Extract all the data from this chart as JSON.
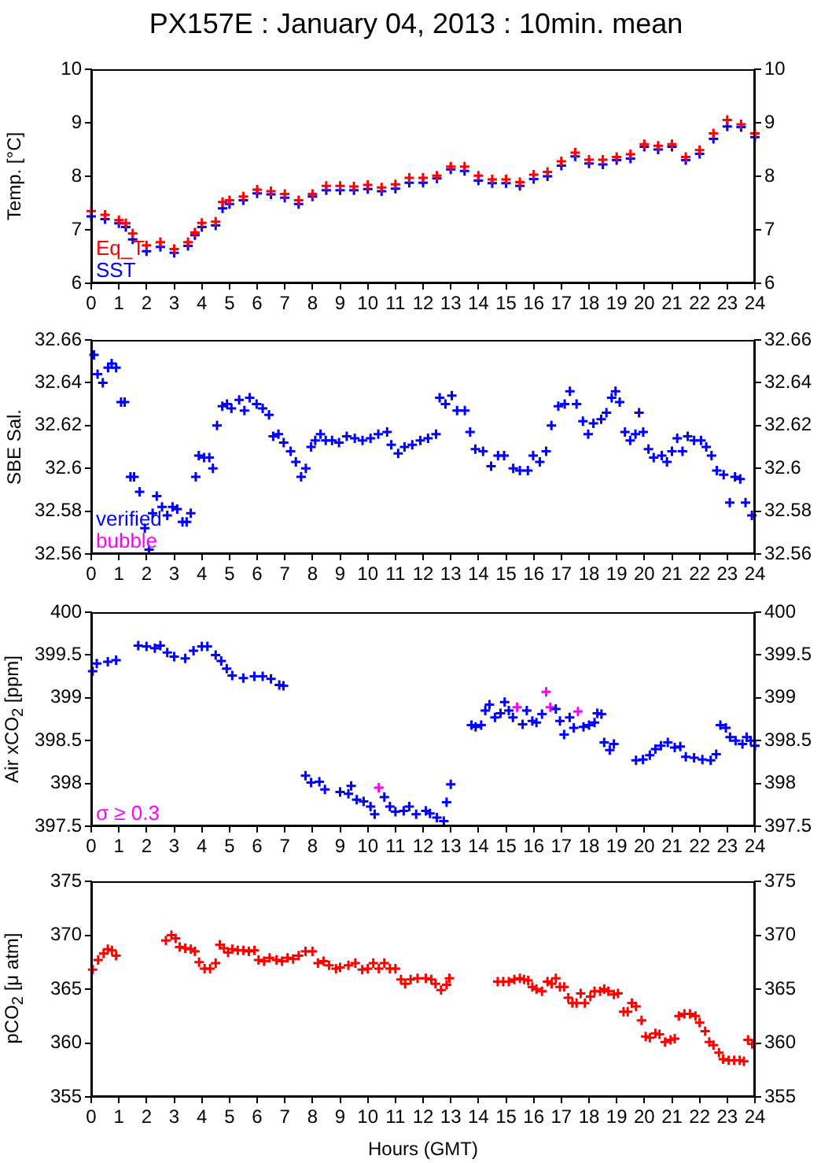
{
  "chart_data": [
    {
      "type": "scatter",
      "title": "PX157E : January 04, 2013 : 10min. mean",
      "ylabel": "Temp. [°C]",
      "marker": "cross",
      "grid": false,
      "legend": "bottom left",
      "x": [
        0,
        0.5,
        1,
        1.25,
        1.5,
        2,
        2.5,
        3,
        3.5,
        3.75,
        4,
        4.5,
        4.75,
        5,
        5.5,
        6,
        6.5,
        7,
        7.5,
        8,
        8.5,
        9,
        9.5,
        10,
        10.5,
        11,
        11.5,
        12,
        12.5,
        13,
        13.5,
        14,
        14.5,
        15,
        15.5,
        16,
        16.5,
        17,
        17.5,
        18,
        18.5,
        19,
        19.5,
        20,
        20.5,
        21,
        21.5,
        22,
        22.5,
        23,
        23.5,
        24
      ],
      "series": [
        {
          "name": "Eq_T",
          "color": "#ff0000",
          "values": [
            7.35,
            7.28,
            7.18,
            7.12,
            6.93,
            6.71,
            6.77,
            6.64,
            6.77,
            6.95,
            7.13,
            7.15,
            7.52,
            7.55,
            7.62,
            7.75,
            7.72,
            7.67,
            7.55,
            7.67,
            7.82,
            7.82,
            7.81,
            7.84,
            7.79,
            7.85,
            7.97,
            7.97,
            8.01,
            8.18,
            8.18,
            8.01,
            7.94,
            7.94,
            7.89,
            8.03,
            8.08,
            8.28,
            8.44,
            8.31,
            8.31,
            8.36,
            8.41,
            8.6,
            8.57,
            8.6,
            8.36,
            8.49,
            8.8,
            9.05,
            8.97,
            8.8
          ]
        },
        {
          "name": "SST",
          "color": "#0000ff",
          "values": [
            7.25,
            7.2,
            7.12,
            7.05,
            6.82,
            6.6,
            6.68,
            6.57,
            6.7,
            6.9,
            7.05,
            7.08,
            7.4,
            7.48,
            7.55,
            7.68,
            7.66,
            7.6,
            7.48,
            7.62,
            7.74,
            7.74,
            7.74,
            7.76,
            7.72,
            7.77,
            7.88,
            7.88,
            7.96,
            8.13,
            8.1,
            7.92,
            7.87,
            7.87,
            7.82,
            7.95,
            8.0,
            8.2,
            8.37,
            8.24,
            8.22,
            8.3,
            8.33,
            8.55,
            8.5,
            8.55,
            8.3,
            8.42,
            8.7,
            8.93,
            8.92,
            8.73
          ]
        }
      ],
      "xlim": [
        0,
        24
      ],
      "xticks": [
        0,
        1,
        2,
        3,
        4,
        5,
        6,
        7,
        8,
        9,
        10,
        11,
        12,
        13,
        14,
        15,
        16,
        17,
        18,
        19,
        20,
        21,
        22,
        23,
        24
      ],
      "ylim": [
        6,
        10
      ],
      "yticks": [
        6,
        7,
        8,
        9,
        10
      ],
      "y2lim": [
        6,
        10
      ],
      "y2ticks": [
        6,
        7,
        8,
        9,
        10
      ]
    },
    {
      "type": "scatter",
      "ylabel": "SBE Sal.",
      "marker": "cross",
      "grid": false,
      "legend": "bottom left",
      "series": [
        {
          "name": "verified",
          "color": "#0000ff",
          "x": [
            0.1,
            0.23,
            0.42,
            0.61,
            0.74,
            0.9,
            1.08,
            1.21,
            1.42,
            1.55,
            1.75,
            1.94,
            2.09,
            2.22,
            2.37,
            2.56,
            2.75,
            2.94,
            3.11,
            3.3,
            3.45,
            3.6,
            3.78,
            3.89,
            4.08,
            4.27,
            4.4,
            4.55,
            4.74,
            4.91,
            5.07,
            5.35,
            5.54,
            5.73,
            5.98,
            6.2,
            6.43,
            6.58,
            6.77,
            6.96,
            7.21,
            7.4,
            7.59,
            7.76,
            7.95,
            8.1,
            8.29,
            8.48,
            8.71,
            8.96,
            9.24,
            9.53,
            9.81,
            10.1,
            10.38,
            10.7,
            10.85,
            11.1,
            11.33,
            11.61,
            11.9,
            12.18,
            12.47,
            12.6,
            12.81,
            13.04,
            13.23,
            13.51,
            13.7,
            13.89,
            14.17,
            14.46,
            14.71,
            14.93,
            15.26,
            15.5,
            15.79,
            15.98,
            16.22,
            16.45,
            16.64,
            16.89,
            17.12,
            17.31,
            17.55,
            17.78,
            17.97,
            18.16,
            18.44,
            18.63,
            18.82,
            18.96,
            19.11,
            19.3,
            19.49,
            19.68,
            19.81,
            19.96,
            20.15,
            20.34,
            20.63,
            20.82,
            21.0,
            21.19,
            21.38,
            21.57,
            21.8,
            22.05,
            22.24,
            22.43,
            22.62,
            22.87,
            23.09,
            23.28,
            23.47,
            23.66,
            23.89
          ],
          "values": [
            32.653,
            32.644,
            32.64,
            32.647,
            32.649,
            32.647,
            32.631,
            32.631,
            32.596,
            32.596,
            32.589,
            32.572,
            32.562,
            32.579,
            32.587,
            32.582,
            32.578,
            32.582,
            32.581,
            32.575,
            32.575,
            32.579,
            32.596,
            32.606,
            32.605,
            32.605,
            32.6,
            32.62,
            32.629,
            32.63,
            32.628,
            32.632,
            32.627,
            32.633,
            32.63,
            32.628,
            32.625,
            32.615,
            32.616,
            32.612,
            32.608,
            32.603,
            32.596,
            32.6,
            32.61,
            32.613,
            32.616,
            32.613,
            32.613,
            32.612,
            32.615,
            32.614,
            32.613,
            32.614,
            32.616,
            32.617,
            32.611,
            32.607,
            32.61,
            32.611,
            32.613,
            32.614,
            32.616,
            32.633,
            32.63,
            32.634,
            32.627,
            32.627,
            32.617,
            32.609,
            32.608,
            32.601,
            32.606,
            32.606,
            32.6,
            32.599,
            32.599,
            32.606,
            32.603,
            32.608,
            32.62,
            32.629,
            32.63,
            32.636,
            32.63,
            32.622,
            32.616,
            32.621,
            32.623,
            32.626,
            32.633,
            32.636,
            32.631,
            32.617,
            32.613,
            32.616,
            32.626,
            32.617,
            32.609,
            32.605,
            32.606,
            32.603,
            32.608,
            32.614,
            32.608,
            32.615,
            32.613,
            32.613,
            32.61,
            32.606,
            32.599,
            32.597,
            32.584,
            32.596,
            32.595,
            32.584,
            32.578
          ]
        },
        {
          "name": "bubble",
          "color": "#ff00ff"
        }
      ],
      "xlim": [
        0,
        24
      ],
      "xticks": [
        0,
        1,
        2,
        3,
        4,
        5,
        6,
        7,
        8,
        9,
        10,
        11,
        12,
        13,
        14,
        15,
        16,
        17,
        18,
        19,
        20,
        21,
        22,
        23,
        24
      ],
      "ylim": [
        32.56,
        32.66
      ],
      "yticks": [
        32.56,
        32.58,
        32.6,
        32.62,
        32.64,
        32.66
      ],
      "y2lim": [
        32.56,
        32.66
      ],
      "y2ticks": [
        32.56,
        32.58,
        32.6,
        32.62,
        32.64,
        32.66
      ]
    },
    {
      "type": "scatter",
      "ylabel": "Air xCO$_{2}$ [ppm]",
      "marker": "cross",
      "grid": false,
      "legend": "bottom left",
      "series": [
        {
          "color": "#0000ff",
          "x": [
            0.05,
            0.2,
            0.6,
            0.9,
            1.7,
            2.0,
            2.3,
            2.5,
            2.75,
            3.0,
            3.4,
            3.7,
            4.0,
            4.2,
            4.5,
            4.7,
            4.9,
            5.1,
            5.5,
            5.9,
            6.2,
            6.5,
            6.8,
            6.95,
            7.75,
            7.95,
            8.25,
            8.45,
            9.0,
            9.3,
            9.4,
            9.6,
            9.85,
            10.1,
            10.25,
            10.6,
            10.8,
            11.0,
            11.3,
            11.5,
            11.75,
            12.1,
            12.25,
            12.5,
            12.75,
            12.85,
            13.0,
            13.75,
            13.9,
            14.1,
            14.25,
            14.4,
            14.6,
            14.8,
            14.95,
            15.1,
            15.25,
            15.6,
            15.75,
            15.95,
            16.1,
            16.3,
            16.8,
            16.95,
            17.1,
            17.3,
            17.45,
            17.8,
            18.0,
            18.2,
            18.3,
            18.45,
            18.55,
            18.75,
            18.9,
            19.7,
            19.95,
            20.2,
            20.4,
            20.6,
            20.85,
            21.1,
            21.3,
            21.5,
            21.8,
            22.1,
            22.4,
            22.6,
            22.75,
            22.95,
            23.1,
            23.3,
            23.55,
            23.7,
            23.85,
            24.0
          ],
          "values": [
            399.31,
            399.4,
            399.42,
            399.44,
            399.61,
            399.6,
            399.58,
            399.61,
            399.53,
            399.48,
            399.46,
            399.55,
            399.6,
            399.6,
            399.5,
            399.43,
            399.34,
            399.26,
            399.23,
            399.25,
            399.25,
            399.22,
            399.15,
            399.14,
            398.09,
            398.01,
            398.02,
            397.93,
            397.9,
            397.88,
            397.97,
            397.81,
            397.79,
            397.73,
            397.64,
            397.84,
            397.73,
            397.67,
            397.68,
            397.73,
            397.64,
            397.68,
            397.65,
            397.6,
            397.56,
            397.78,
            397.99,
            398.68,
            398.66,
            398.68,
            398.85,
            398.92,
            398.77,
            398.82,
            398.95,
            398.85,
            398.77,
            398.69,
            398.85,
            398.73,
            398.71,
            398.81,
            398.87,
            398.73,
            398.57,
            398.77,
            398.65,
            398.66,
            398.68,
            398.71,
            398.82,
            398.81,
            398.48,
            398.39,
            398.46,
            398.27,
            398.28,
            398.33,
            398.4,
            398.44,
            398.48,
            398.42,
            398.43,
            398.31,
            398.3,
            398.28,
            398.27,
            398.34,
            398.68,
            398.65,
            398.54,
            398.5,
            398.46,
            398.54,
            398.5,
            398.44
          ]
        },
        {
          "name": "σ ≥ 0.3",
          "color": "#ff00ff",
          "x": [
            10.4,
            15.4,
            16.45,
            16.6,
            17.6
          ],
          "values": [
            397.95,
            398.89,
            399.07,
            398.89,
            398.84
          ]
        }
      ],
      "xlim": [
        0,
        24
      ],
      "xticks": [
        0,
        1,
        2,
        3,
        4,
        5,
        6,
        7,
        8,
        9,
        10,
        11,
        12,
        13,
        14,
        15,
        16,
        17,
        18,
        19,
        20,
        21,
        22,
        23,
        24
      ],
      "ylim": [
        397.5,
        400
      ],
      "yticks": [
        397.5,
        398,
        398.5,
        399,
        399.5,
        400
      ],
      "y2lim": [
        397.5,
        400
      ],
      "y2ticks": [
        397.5,
        398,
        398.5,
        399,
        399.5,
        400
      ]
    },
    {
      "type": "scatter",
      "ylabel": "pCO$_{2}$ [μ atm]",
      "xlabel": "Hours (GMT)",
      "marker": "cross",
      "grid": false,
      "series": [
        {
          "color": "#ff0000",
          "x": [
            0.05,
            0.25,
            0.45,
            0.6,
            0.75,
            0.9,
            2.7,
            2.9,
            3.05,
            3.2,
            3.4,
            3.6,
            3.75,
            3.9,
            4.1,
            4.3,
            4.5,
            4.65,
            4.8,
            4.95,
            5.1,
            5.3,
            5.5,
            5.7,
            5.9,
            6.05,
            6.25,
            6.45,
            6.7,
            6.9,
            7.1,
            7.3,
            7.5,
            7.75,
            8.0,
            8.2,
            8.4,
            8.6,
            8.85,
            9.0,
            9.3,
            9.55,
            9.8,
            10.0,
            10.2,
            10.4,
            10.6,
            10.8,
            11.0,
            11.2,
            11.35,
            11.55,
            11.8,
            12.1,
            12.3,
            12.45,
            12.65,
            12.85,
            12.95,
            14.7,
            14.9,
            15.1,
            15.3,
            15.5,
            15.65,
            15.8,
            15.95,
            16.1,
            16.3,
            16.5,
            16.65,
            16.8,
            16.95,
            17.1,
            17.25,
            17.4,
            17.55,
            17.7,
            17.85,
            18.05,
            18.2,
            18.4,
            18.55,
            18.7,
            18.9,
            19.05,
            19.25,
            19.4,
            19.55,
            19.7,
            19.9,
            20.05,
            20.2,
            20.4,
            20.55,
            20.75,
            20.95,
            21.1,
            21.25,
            21.45,
            21.65,
            21.85,
            22.0,
            22.2,
            22.35,
            22.5,
            22.7,
            22.85,
            23.05,
            23.25,
            23.45,
            23.6,
            23.75,
            23.9
          ],
          "values": [
            366.8,
            367.7,
            368.3,
            368.7,
            368.6,
            368.1,
            369.5,
            370.0,
            369.7,
            368.9,
            368.8,
            368.7,
            368.5,
            367.5,
            366.9,
            366.9,
            367.4,
            369.1,
            368.8,
            368.4,
            368.7,
            368.6,
            368.6,
            368.5,
            368.6,
            367.7,
            367.6,
            367.9,
            367.7,
            367.6,
            367.9,
            367.8,
            368.1,
            368.5,
            368.5,
            367.4,
            367.6,
            367.2,
            366.9,
            367.0,
            367.2,
            367.4,
            366.8,
            366.9,
            367.4,
            366.9,
            367.4,
            366.9,
            366.9,
            365.9,
            365.5,
            365.9,
            366.0,
            366.0,
            365.9,
            365.5,
            364.9,
            365.4,
            366.0,
            365.7,
            365.7,
            365.7,
            365.9,
            366.0,
            365.9,
            365.8,
            365.2,
            365.0,
            364.8,
            365.7,
            365.5,
            366.0,
            365.2,
            365.2,
            364.2,
            363.7,
            363.7,
            364.6,
            363.7,
            364.3,
            364.8,
            364.8,
            365.0,
            364.8,
            364.5,
            364.6,
            362.9,
            362.9,
            363.7,
            363.4,
            362.1,
            360.6,
            360.5,
            360.9,
            360.8,
            360.1,
            360.3,
            360.4,
            362.5,
            362.7,
            362.7,
            362.5,
            361.9,
            361.1,
            360.1,
            359.8,
            359.1,
            358.5,
            358.4,
            358.4,
            358.4,
            358.3,
            360.3,
            359.9
          ]
        }
      ],
      "xlim": [
        0,
        24
      ],
      "xticks": [
        0,
        1,
        2,
        3,
        4,
        5,
        6,
        7,
        8,
        9,
        10,
        11,
        12,
        13,
        14,
        15,
        16,
        17,
        18,
        19,
        20,
        21,
        22,
        23,
        24
      ],
      "ylim": [
        355,
        375
      ],
      "yticks": [
        355,
        360,
        365,
        370,
        375
      ],
      "y2lim": [
        355,
        375
      ],
      "y2ticks": [
        355,
        360,
        365,
        370,
        375
      ]
    }
  ]
}
